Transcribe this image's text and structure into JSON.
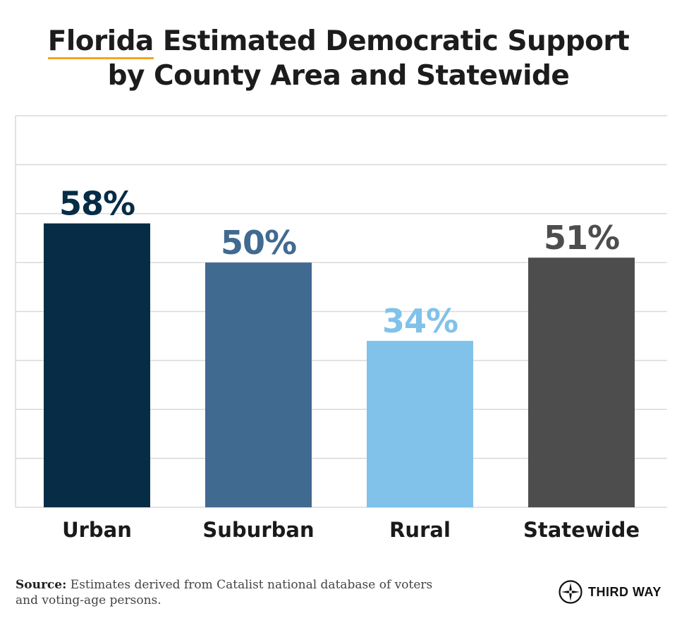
{
  "title": {
    "highlight": "Florida",
    "line1_rest": " Estimated Democratic Support",
    "line2": "by County Area and Statewide"
  },
  "chart_data": {
    "type": "bar",
    "title": "Florida Estimated Democratic Support by County Area and Statewide",
    "categories": [
      "Urban",
      "Suburban",
      "Rural",
      "Statewide"
    ],
    "values": [
      58,
      50,
      34,
      51
    ],
    "labels": [
      "58%",
      "50%",
      "34%",
      "51%"
    ],
    "colors": [
      "#062c46",
      "#416a91",
      "#80c2ea",
      "#4d4d4d"
    ],
    "ylim": [
      0,
      80
    ],
    "grid": true,
    "xlabel": "",
    "ylabel": ""
  },
  "source": {
    "label": "Source:",
    "text": " Estimates derived from Catalist national database of voters and voting-age persons."
  },
  "logo": {
    "name": "THIRD WAY",
    "icon": "compass-star-icon"
  }
}
